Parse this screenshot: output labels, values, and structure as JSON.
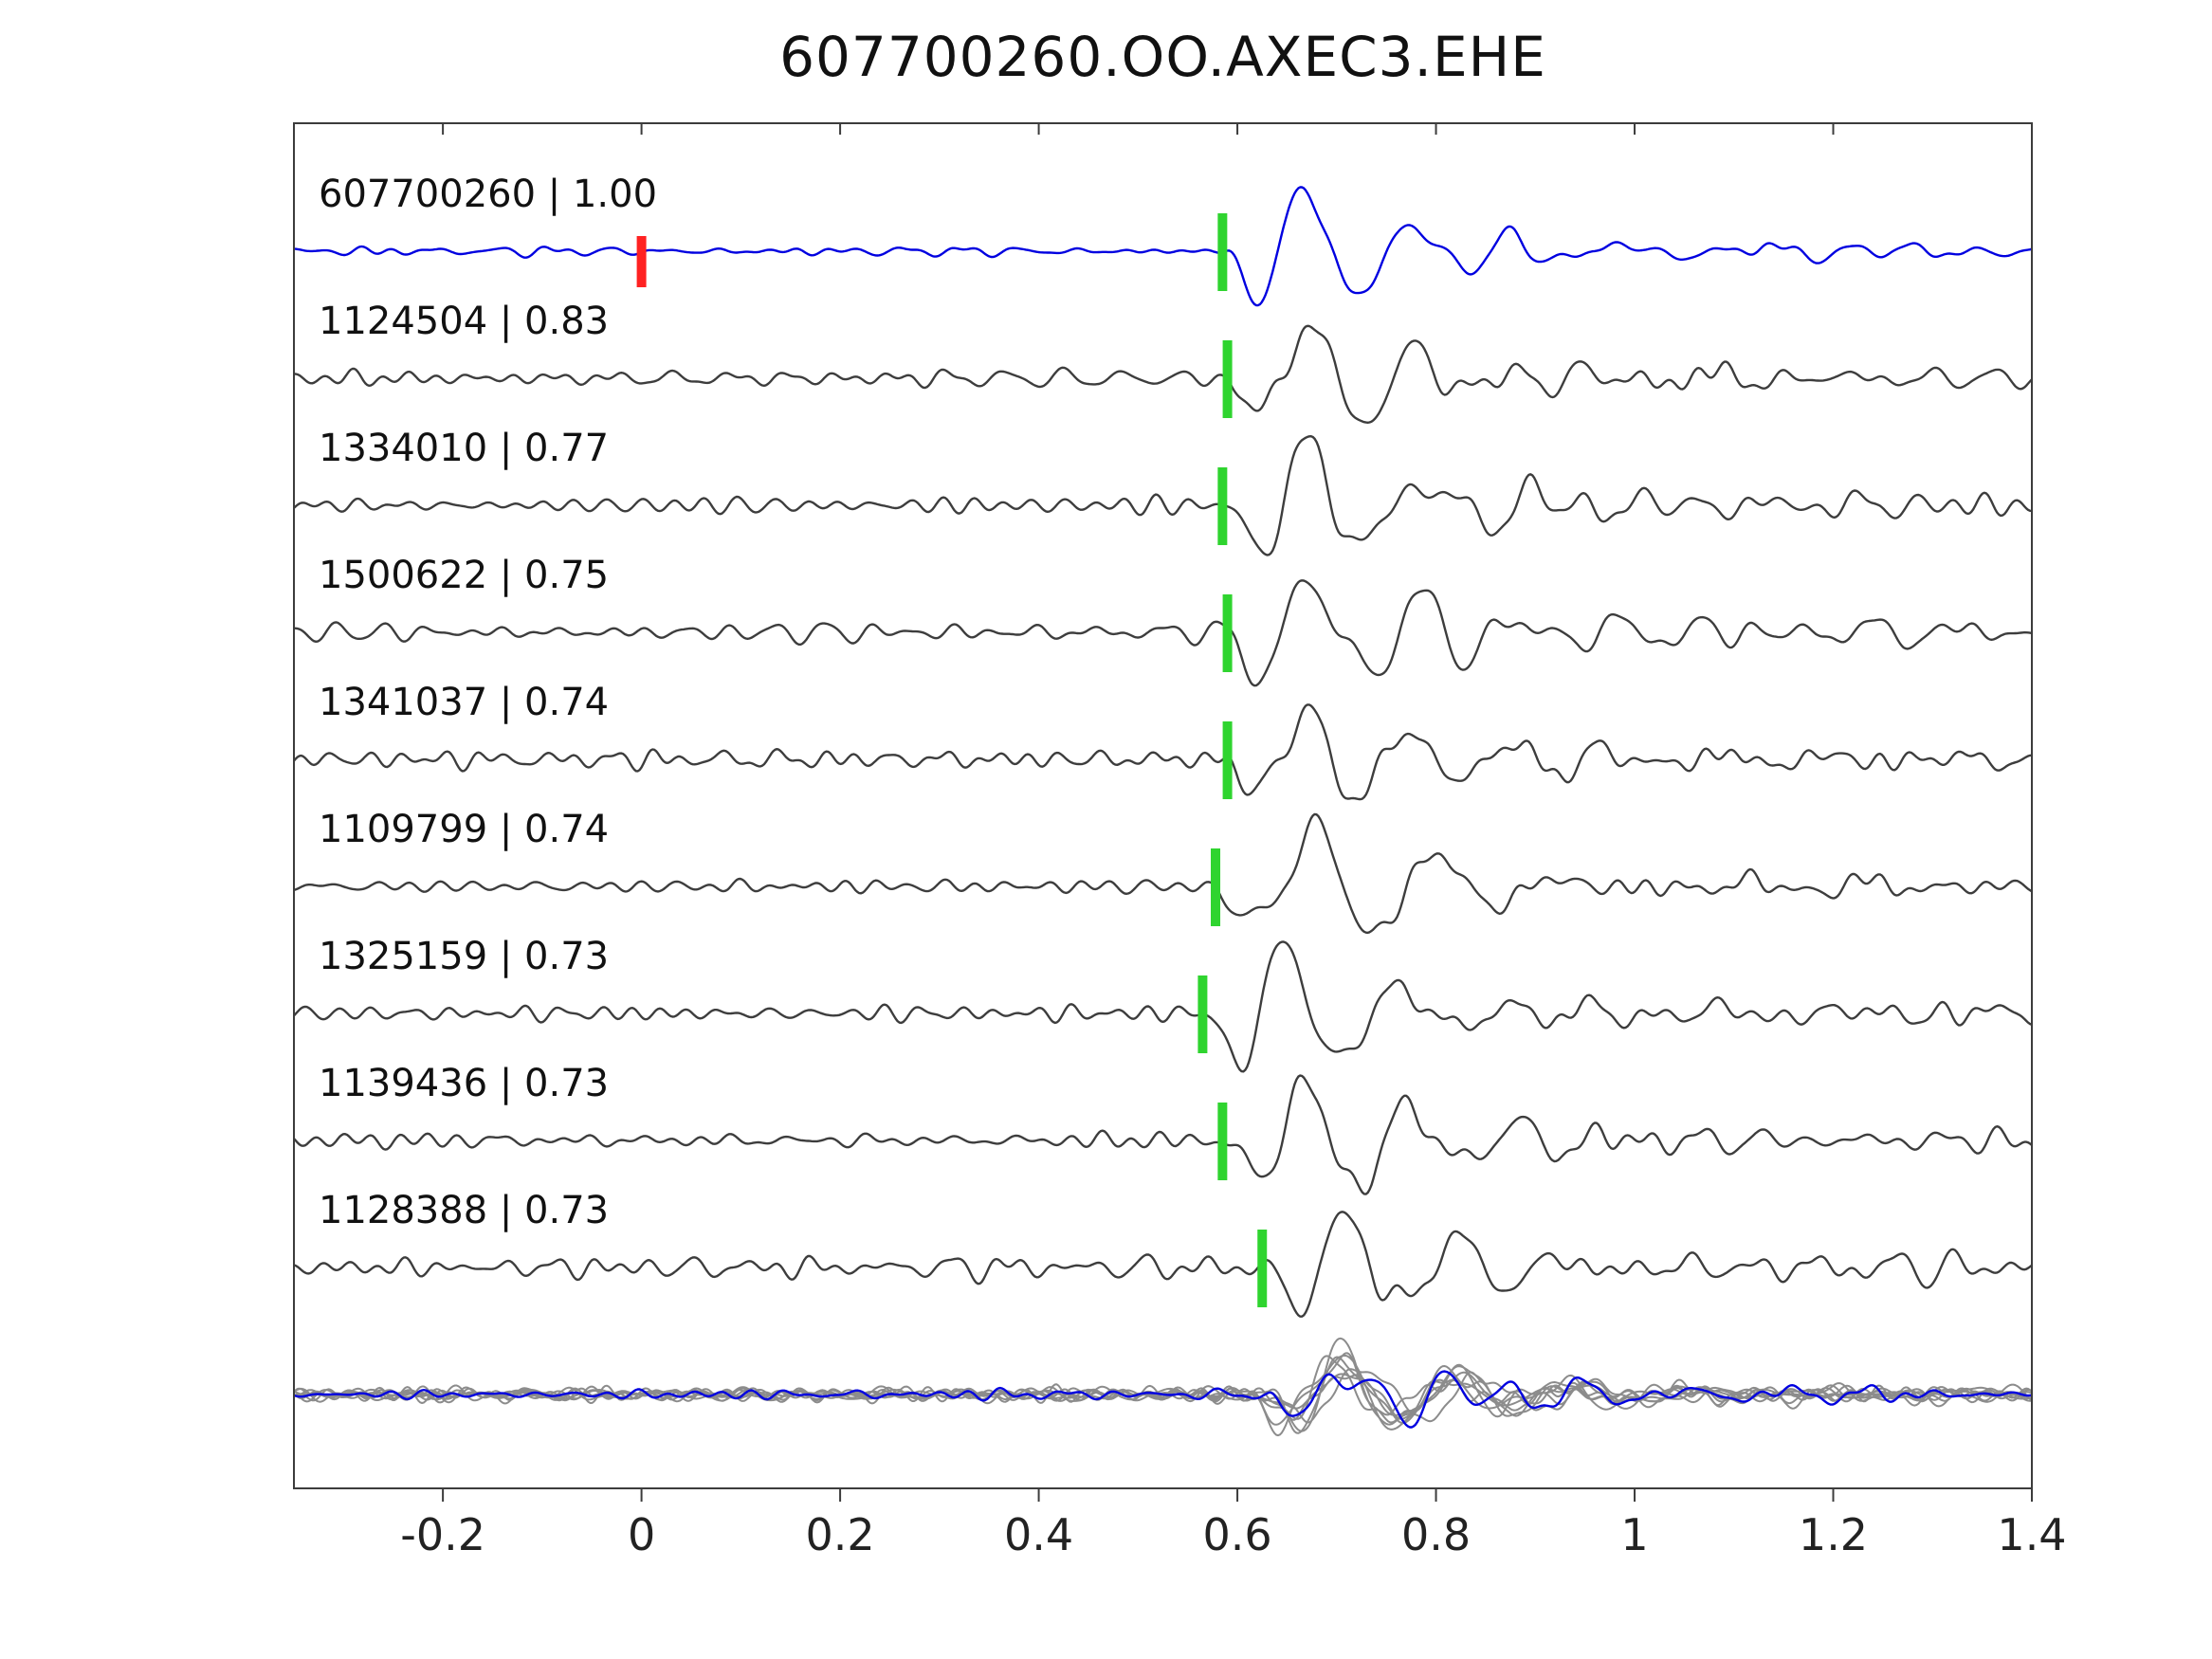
{
  "chart_data": {
    "type": "line",
    "title": "607700260.OO.AXEC3.EHE",
    "xlabel": "",
    "ylabel": "",
    "xlim": [
      -0.35,
      1.4
    ],
    "xticks": [
      -0.2,
      0,
      0.2,
      0.4,
      0.6,
      0.8,
      1,
      1.2,
      1.4
    ],
    "xtick_labels": [
      "-0.2",
      "0",
      "0.2",
      "0.4",
      "0.6",
      "0.8",
      "1",
      "1.2",
      "1.4"
    ],
    "grid": false,
    "legend": "none",
    "colors": {
      "template_blue": "#0000e0",
      "match_gray": "#3d3d3d",
      "overlay_gray": "#8c8c8c",
      "pick_marker_green": "#2fd42f",
      "origin_marker_red": "#ff2222",
      "axis": "#3c3c3c",
      "text": "#111111"
    },
    "traces": [
      {
        "label": "607700260 | 1.00",
        "event_id": "607700260",
        "correlation": "1.00",
        "role": "template",
        "pick_x": 0.585,
        "origin_x": 0.0,
        "seed": 101,
        "noise_amp": 4.2,
        "event_amp": 62,
        "coda_amp": 22
      },
      {
        "label": "1124504 | 0.83",
        "event_id": "1124504",
        "correlation": "0.83",
        "role": "match",
        "pick_x": 0.59,
        "seed": 202,
        "noise_amp": 9.0,
        "event_amp": 64,
        "coda_amp": 26
      },
      {
        "label": "1334010 | 0.77",
        "event_id": "1334010",
        "correlation": "0.77",
        "role": "match",
        "pick_x": 0.585,
        "seed": 303,
        "noise_amp": 9.5,
        "event_amp": 62,
        "coda_amp": 26
      },
      {
        "label": "1500622 | 0.75",
        "event_id": "1500622",
        "correlation": "0.75",
        "role": "match",
        "pick_x": 0.59,
        "seed": 404,
        "noise_amp": 10.0,
        "event_amp": 64,
        "coda_amp": 26
      },
      {
        "label": "1341037 | 0.74",
        "event_id": "1341037",
        "correlation": "0.74",
        "role": "match",
        "pick_x": 0.59,
        "seed": 505,
        "noise_amp": 10.0,
        "event_amp": 62,
        "coda_amp": 28
      },
      {
        "label": "1109799 | 0.74",
        "event_id": "1109799",
        "correlation": "0.74",
        "role": "match",
        "pick_x": 0.578,
        "seed": 606,
        "noise_amp": 8.0,
        "event_amp": 60,
        "coda_amp": 26
      },
      {
        "label": "1325159 | 0.73",
        "event_id": "1325159",
        "correlation": "0.73",
        "role": "match",
        "pick_x": 0.565,
        "seed": 707,
        "noise_amp": 8.5,
        "event_amp": 62,
        "coda_amp": 26
      },
      {
        "label": "1139436 | 0.73",
        "event_id": "1139436",
        "correlation": "0.73",
        "role": "match",
        "pick_x": 0.585,
        "seed": 808,
        "noise_amp": 9.0,
        "event_amp": 60,
        "coda_amp": 26
      },
      {
        "label": "1128388 | 0.73",
        "event_id": "1128388",
        "correlation": "0.73",
        "role": "match",
        "pick_x": 0.625,
        "seed": 909,
        "noise_amp": 13.0,
        "event_amp": 52,
        "coda_amp": 24
      }
    ],
    "overlay": {
      "description": "all matched traces superimposed with template",
      "gray_count": 8,
      "has_template_trace": true,
      "pick_x": 0.62,
      "seed": 4242,
      "gray_noise_amp": 7,
      "gray_event_amp": 30,
      "gray_coda_amp": 14,
      "blue_noise_amp": 6,
      "blue_event_amp": 27,
      "blue_coda_amp": 18
    }
  }
}
